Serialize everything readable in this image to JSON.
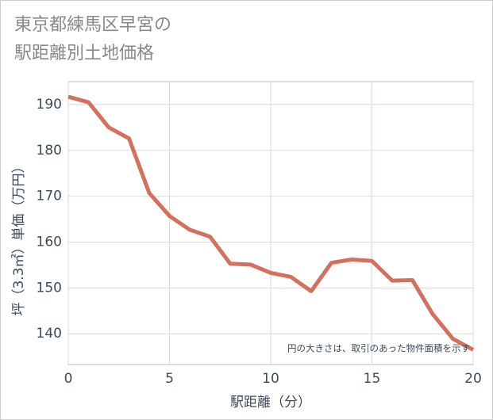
{
  "chart_data": {
    "type": "line",
    "title_lines": [
      "東京都練馬区早宮の",
      "駅距離別土地価格"
    ],
    "x_label": "駅距離（分）",
    "y_label": "坪（3.3㎡）単価（万円）",
    "annotation": "円の大きさは、取引のあった物件面積を示す",
    "x": [
      0,
      1,
      2,
      3,
      4,
      5,
      6,
      7,
      8,
      9,
      10,
      11,
      12,
      13,
      14,
      15,
      16,
      17,
      18,
      19,
      20
    ],
    "series": [
      {
        "color": "#d4715e",
        "values": [
          191.7,
          190.5,
          185.0,
          182.6,
          170.7,
          165.7,
          162.7,
          161.2,
          155.3,
          155.1,
          153.3,
          152.4,
          149.3,
          155.5,
          156.2,
          155.9,
          151.6,
          151.7,
          144.3,
          138.9,
          136.5
        ]
      }
    ],
    "xlim": [
      0,
      20
    ],
    "xticks": [
      0,
      5,
      10,
      15,
      20
    ],
    "ylim": [
      133.3,
      195
    ],
    "yticks": [
      140,
      150,
      160,
      170,
      180,
      190
    ],
    "grid": true
  }
}
